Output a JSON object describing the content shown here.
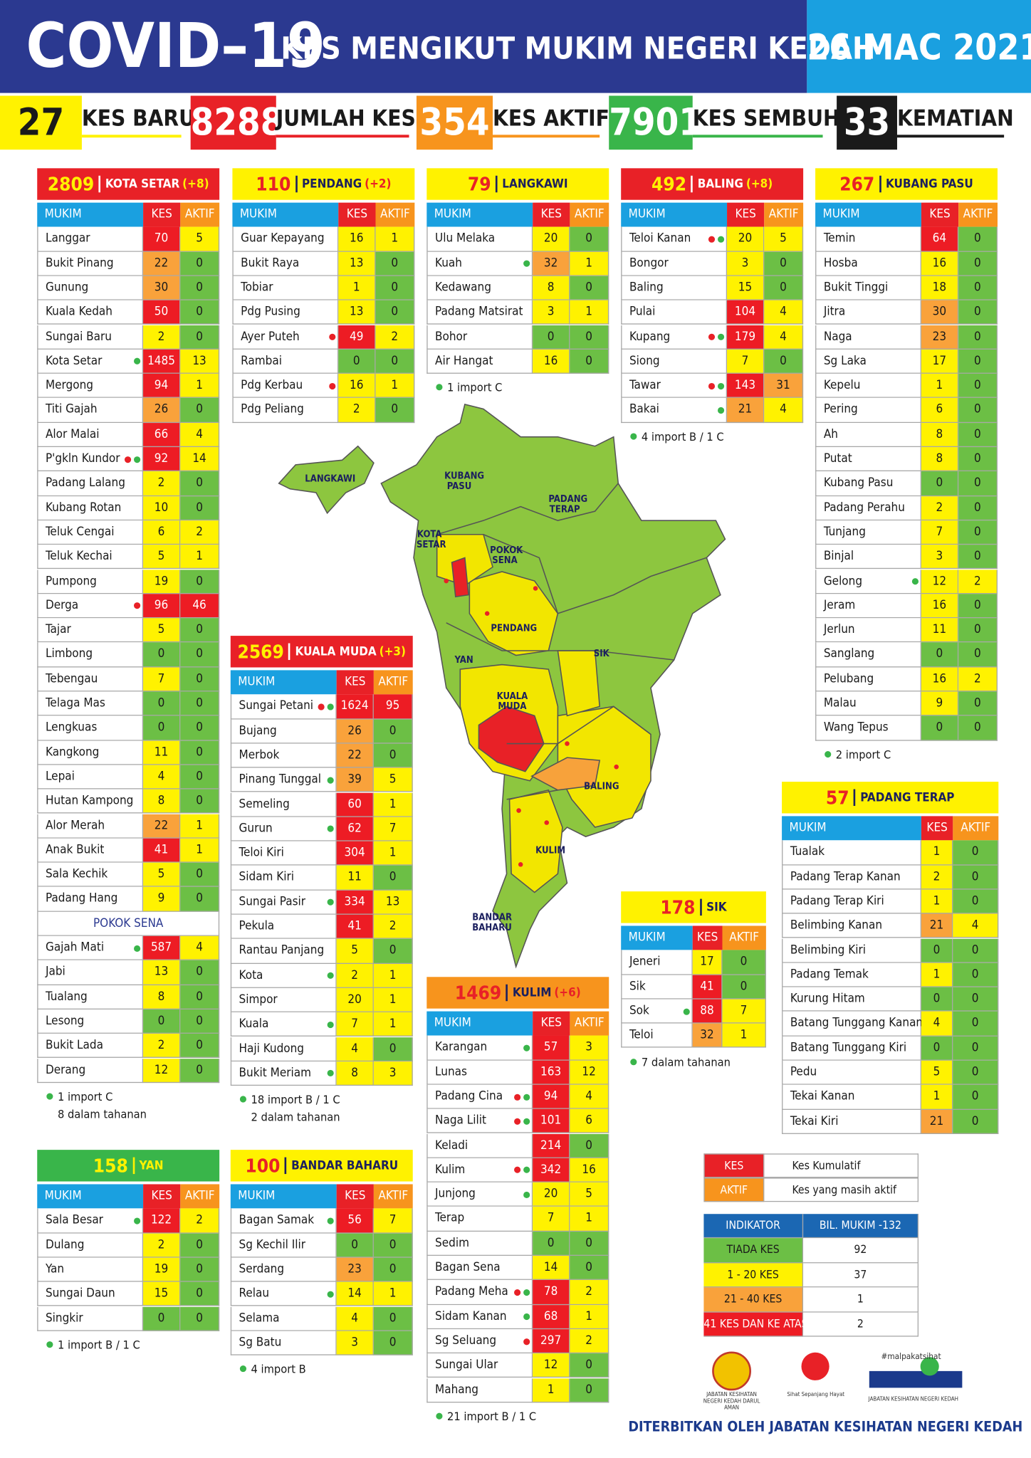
{
  "header": {
    "title": "COVID–19",
    "subtitle": "KES MENGIKUT MUKIM NEGERI KEDAH",
    "date": "26 MAC 2021"
  },
  "stats": [
    {
      "value": 27,
      "label": "KES BARU",
      "color": "#fff200",
      "text_color": "#1a1a1a"
    },
    {
      "value": 8288,
      "label": "JUMLAH KES",
      "color": "#e82127",
      "text_color": "#ffffff"
    },
    {
      "value": 354,
      "label": "KES AKTIF",
      "color": "#f7941d",
      "text_color": "#ffffff"
    },
    {
      "value": 7901,
      "label": "KES SEMBUH",
      "color": "#39b54a",
      "text_color": "#ffffff"
    },
    {
      "value": 33,
      "label": "KEMATIAN",
      "color": "#1a1a1a",
      "text_color": "#ffffff"
    }
  ],
  "columns": [
    "MUKIM",
    "KES",
    "AKTIF"
  ],
  "tables": [
    {
      "total": 2809,
      "name": "KOTA SETAR",
      "delta": "(+8)",
      "color": "#e82127",
      "total_color": "#fff200",
      "text_color": "#ffffff",
      "rows": [
        [
          "Langgar",
          70,
          5
        ],
        [
          "Bukit Pinang",
          22,
          0
        ],
        [
          "Gunung",
          30,
          0
        ],
        [
          "Kuala Kedah",
          50,
          0
        ],
        [
          "Sungai Baru",
          2,
          0
        ],
        [
          "Kota Setar",
          1485,
          13,
          [
            "#39b54a"
          ]
        ],
        [
          "Mergong",
          94,
          1
        ],
        [
          "Titi Gajah",
          26,
          0
        ],
        [
          "Alor Malai",
          66,
          4
        ],
        [
          "P'gkln Kundor",
          92,
          14,
          [
            "#e82127",
            "#39b54a"
          ]
        ],
        [
          "Padang Lalang",
          2,
          0
        ],
        [
          "Kubang Rotan",
          10,
          0
        ],
        [
          "Teluk Cengai",
          6,
          2
        ],
        [
          "Teluk Kechai",
          5,
          1
        ],
        [
          "Pumpong",
          19,
          0
        ],
        [
          "Derga",
          96,
          46,
          [
            "#e82127"
          ]
        ],
        [
          "Tajar",
          5,
          0
        ],
        [
          "Limbong",
          0,
          0
        ],
        [
          "Tebengau",
          7,
          0
        ],
        [
          "Telaga Mas",
          0,
          0
        ],
        [
          "Lengkuas",
          0,
          0
        ],
        [
          "Kangkong",
          11,
          0
        ],
        [
          "Lepai",
          4,
          0
        ],
        [
          "Hutan Kampong",
          8,
          0
        ],
        [
          "Alor Merah",
          22,
          1
        ],
        [
          "Anak Bukit",
          41,
          1
        ],
        [
          "Sala Kechik",
          5,
          0
        ],
        [
          "Padang Hang",
          9,
          0
        ]
      ],
      "section": "POKOK SENA",
      "section_rows": [
        [
          "Gajah Mati",
          587,
          4,
          [
            "#39b54a"
          ]
        ],
        [
          "Jabi",
          13,
          0
        ],
        [
          "Tualang",
          8,
          0
        ],
        [
          "Lesong",
          0,
          0
        ],
        [
          "Bukit Lada",
          2,
          0
        ],
        [
          "Derang",
          12,
          0
        ]
      ],
      "notes": [
        "1 import C",
        "8 dalam tahanan"
      ]
    },
    {
      "total": 110,
      "name": "PENDANG",
      "delta": "(+2)",
      "color": "#fff200",
      "total_color": "#e82127",
      "text_color": "#1b1f5e",
      "rows": [
        [
          "Guar Kepayang",
          16,
          1
        ],
        [
          "Bukit Raya",
          13,
          0
        ],
        [
          "Tobiar",
          1,
          0
        ],
        [
          "Pdg Pusing",
          13,
          0
        ],
        [
          "Ayer Puteh",
          49,
          2,
          [
            "#e82127"
          ]
        ],
        [
          "Rambai",
          0,
          0
        ],
        [
          "Pdg Kerbau",
          16,
          1,
          [
            "#e82127"
          ]
        ],
        [
          "Pdg Peliang",
          2,
          0
        ]
      ]
    },
    {
      "total": 79,
      "name": "LANGKAWI",
      "color": "#fff200",
      "total_color": "#e82127",
      "text_color": "#1b1f5e",
      "rows": [
        [
          "Ulu Melaka",
          20,
          0
        ],
        [
          "Kuah",
          32,
          1,
          [
            "#39b54a"
          ]
        ],
        [
          "Kedawang",
          8,
          0
        ],
        [
          "Padang Matsirat",
          3,
          1
        ],
        [
          "Bohor",
          0,
          0
        ],
        [
          "Air Hangat",
          16,
          0
        ]
      ],
      "notes": [
        "1 import C"
      ]
    },
    {
      "total": 492,
      "name": "BALING",
      "delta": "(+8)",
      "color": "#e82127",
      "total_color": "#fff200",
      "text_color": "#ffffff",
      "rows": [
        [
          "Teloi Kanan",
          20,
          5,
          [
            "#e82127",
            "#39b54a"
          ]
        ],
        [
          "Bongor",
          3,
          0
        ],
        [
          "Baling",
          15,
          0
        ],
        [
          "Pulai",
          104,
          4
        ],
        [
          "Kupang",
          179,
          4,
          [
            "#e82127",
            "#39b54a"
          ]
        ],
        [
          "Siong",
          7,
          0
        ],
        [
          "Tawar",
          143,
          31,
          [
            "#e82127",
            "#39b54a"
          ]
        ],
        [
          "Bakai",
          21,
          4,
          [
            "#39b54a"
          ]
        ]
      ],
      "notes": [
        "4 import B / 1 C"
      ]
    },
    {
      "total": 267,
      "name": "KUBANG PASU",
      "color": "#fff200",
      "total_color": "#e82127",
      "text_color": "#1b1f5e",
      "rows": [
        [
          "Temin",
          64,
          0
        ],
        [
          "Hosba",
          16,
          0
        ],
        [
          "Bukit Tinggi",
          18,
          0
        ],
        [
          "Jitra",
          30,
          0
        ],
        [
          "Naga",
          23,
          0
        ],
        [
          "Sg Laka",
          17,
          0
        ],
        [
          "Kepelu",
          1,
          0
        ],
        [
          "Pering",
          6,
          0
        ],
        [
          "Ah",
          8,
          0
        ],
        [
          "Putat",
          8,
          0
        ],
        [
          "Kubang Pasu",
          0,
          0
        ],
        [
          "Padang Perahu",
          2,
          0
        ],
        [
          "Tunjang",
          7,
          0
        ],
        [
          "Binjal",
          3,
          0
        ],
        [
          "Gelong",
          12,
          2,
          [
            "#39b54a"
          ]
        ],
        [
          "Jeram",
          16,
          0
        ],
        [
          "Jerlun",
          11,
          0
        ],
        [
          "Sanglang",
          0,
          0
        ],
        [
          "Pelubang",
          16,
          2
        ],
        [
          "Malau",
          9,
          0
        ],
        [
          "Wang Tepus",
          0,
          0
        ]
      ],
      "notes": [
        "2 import C"
      ]
    },
    {
      "total": 2569,
      "name": "KUALA MUDA",
      "delta": "(+3)",
      "color": "#e82127",
      "total_color": "#fff200",
      "text_color": "#ffffff",
      "rows": [
        [
          "Sungai Petani",
          1624,
          95,
          [
            "#e82127",
            "#39b54a"
          ]
        ],
        [
          "Bujang",
          26,
          0
        ],
        [
          "Merbok",
          22,
          0
        ],
        [
          "Pinang Tunggal",
          39,
          5,
          [
            "#39b54a"
          ]
        ],
        [
          "Semeling",
          60,
          1
        ],
        [
          "Gurun",
          62,
          7,
          [
            "#39b54a"
          ]
        ],
        [
          "Teloi Kiri",
          304,
          1
        ],
        [
          "Sidam Kiri",
          11,
          0
        ],
        [
          "Sungai Pasir",
          334,
          13,
          [
            "#39b54a"
          ]
        ],
        [
          "Pekula",
          41,
          2
        ],
        [
          "Rantau Panjang",
          5,
          0
        ],
        [
          "Kota",
          2,
          1,
          [
            "#39b54a"
          ]
        ],
        [
          "Simpor",
          20,
          1
        ],
        [
          "Kuala",
          7,
          1,
          [
            "#39b54a"
          ]
        ],
        [
          "Haji Kudong",
          4,
          0
        ],
        [
          "Bukit Meriam",
          8,
          3,
          [
            "#39b54a"
          ]
        ]
      ],
      "notes": [
        "18 import B / 1 C",
        "2 dalam tahanan"
      ]
    },
    {
      "total": 57,
      "name": "PADANG TERAP",
      "color": "#fff200",
      "total_color": "#e82127",
      "text_color": "#1b1f5e",
      "rows": [
        [
          "Tualak",
          1,
          0
        ],
        [
          "Padang Terap Kanan",
          2,
          0
        ],
        [
          "Padang Terap Kiri",
          1,
          0
        ],
        [
          "Belimbing Kanan",
          21,
          4
        ],
        [
          "Belimbing Kiri",
          0,
          0
        ],
        [
          "Padang Temak",
          1,
          0
        ],
        [
          "Kurung Hitam",
          0,
          0
        ],
        [
          "Batang Tunggang Kanan",
          4,
          0
        ],
        [
          "Batang Tunggang Kiri",
          0,
          0
        ],
        [
          "Pedu",
          5,
          0
        ],
        [
          "Tekai Kanan",
          1,
          0
        ],
        [
          "Tekai Kiri",
          21,
          0
        ]
      ]
    },
    {
      "total": 178,
      "name": "SIK",
      "color": "#fff200",
      "total_color": "#e82127",
      "text_color": "#1b1f5e",
      "rows": [
        [
          "Jeneri",
          17,
          0
        ],
        [
          "Sik",
          41,
          0
        ],
        [
          "Sok",
          88,
          7,
          [
            "#39b54a"
          ]
        ],
        [
          "Teloi",
          32,
          1
        ]
      ],
      "notes": [
        "7 dalam tahanan"
      ]
    },
    {
      "total": 1469,
      "name": "KULIM",
      "delta": "(+6)",
      "color": "#f7941d",
      "total_color": "#e82127",
      "text_color": "#1b1f5e",
      "rows": [
        [
          "Karangan",
          57,
          3,
          [
            "#39b54a"
          ]
        ],
        [
          "Lunas",
          163,
          12
        ],
        [
          "Padang Cina",
          94,
          4,
          [
            "#e82127",
            "#39b54a"
          ]
        ],
        [
          "Naga Lilit",
          101,
          6,
          [
            "#e82127",
            "#39b54a"
          ]
        ],
        [
          "Keladi",
          214,
          0
        ],
        [
          "Kulim",
          342,
          16,
          [
            "#e82127",
            "#39b54a"
          ]
        ],
        [
          "Junjong",
          20,
          5,
          [
            "#39b54a"
          ]
        ],
        [
          "Terap",
          7,
          1
        ],
        [
          "Sedim",
          0,
          0
        ],
        [
          "Bagan Sena",
          14,
          0
        ],
        [
          "Padang Meha",
          78,
          2,
          [
            "#e82127",
            "#39b54a"
          ]
        ],
        [
          "Sidam Kanan",
          68,
          1,
          [
            "#39b54a"
          ]
        ],
        [
          "Sg Seluang",
          297,
          2,
          [
            "#e82127"
          ]
        ],
        [
          "Sungai Ular",
          12,
          0
        ],
        [
          "Mahang",
          1,
          0
        ]
      ],
      "notes": [
        "21 import B / 1 C"
      ]
    },
    {
      "total": 158,
      "name": "YAN",
      "color": "#39b54a",
      "total_color": "#fff200",
      "text_color": "#fff200",
      "rows": [
        [
          "Sala Besar",
          122,
          2,
          [
            "#39b54a"
          ]
        ],
        [
          "Dulang",
          2,
          0
        ],
        [
          "Yan",
          19,
          0
        ],
        [
          "Sungai Daun",
          15,
          0
        ],
        [
          "Singkir",
          0,
          0
        ]
      ],
      "notes": [
        "1 import B / 1 C"
      ]
    },
    {
      "total": 100,
      "name": "BANDAR BAHARU",
      "color": "#fff200",
      "total_color": "#e82127",
      "text_color": "#1b1f5e",
      "rows": [
        [
          "Bagan Samak",
          56,
          7,
          [
            "#39b54a"
          ]
        ],
        [
          "Sg Kechil Ilir",
          0,
          0
        ],
        [
          "Serdang",
          23,
          0
        ],
        [
          "Relau",
          14,
          1,
          [
            "#39b54a"
          ]
        ],
        [
          "Selama",
          4,
          0
        ],
        [
          "Sg Batu",
          3,
          0
        ]
      ],
      "notes": [
        "4 import B"
      ]
    }
  ],
  "legend": [
    {
      "key": "KES",
      "text": "Kes Kumulatif",
      "color": "#e82127"
    },
    {
      "key": "AKTIF",
      "text": "Kes yang masih aktif",
      "color": "#f7941d"
    }
  ],
  "indicator": {
    "headers": [
      "INDIKATOR",
      "BIL. MUKIM -132"
    ],
    "rows": [
      {
        "label": "TIADA KES",
        "count": 92,
        "min": 0,
        "color": "#6cbf45"
      },
      {
        "label": "1 - 20 KES",
        "count": 37,
        "min": 1,
        "color": "#fff200"
      },
      {
        "label": "21 - 40 KES",
        "count": 1,
        "min": 21,
        "color": "#f9a23b"
      },
      {
        "label": "41 KES DAN KE ATAS",
        "count": 2,
        "min": 41,
        "color": "#ed1c24"
      }
    ]
  },
  "map": {
    "labels": [
      "LANGKAWI",
      "KUBANG PASU",
      "PADANG TERAP",
      "KOTA SETAR",
      "POKOK SENA",
      "PENDANG",
      "YAN",
      "SIK",
      "KUALA MUDA",
      "BALING",
      "KULIM",
      "BANDAR BAHARU"
    ]
  },
  "logos": [
    "JABATAN KESIHATAN NEGERI KEDAH DARUL AMAN",
    "Sihat Sepanjang Hayat",
    "#malpakatsihat",
    "JABATAN KESIHATAN NEGERI KEDAH"
  ],
  "footer": "DITERBITKAN OLEH JABATAN KESIHATAN NEGERI KEDAH"
}
